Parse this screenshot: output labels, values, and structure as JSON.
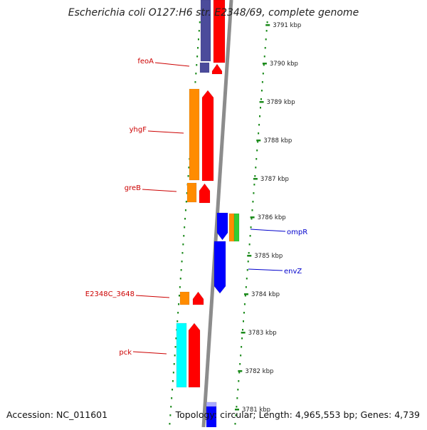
{
  "title": "Escherichia coli O127:H6 str. E2348/69, complete genome",
  "footer": {
    "accession_label": "Accession:",
    "accession": "NC_011601",
    "topology_text": "Topology: circular; Length: 4,965,553 bp; Genes: 4,739"
  },
  "ticks": [
    {
      "label": "3791 kbp",
      "kbp": 3791
    },
    {
      "label": "3790 kbp",
      "kbp": 3790
    },
    {
      "label": "3789 kbp",
      "kbp": 3789
    },
    {
      "label": "3788 kbp",
      "kbp": 3788
    },
    {
      "label": "3787 kbp",
      "kbp": 3787
    },
    {
      "label": "3786 kbp",
      "kbp": 3786
    },
    {
      "label": "3785 kbp",
      "kbp": 3785
    },
    {
      "label": "3784 kbp",
      "kbp": 3784
    },
    {
      "label": "3783 kbp",
      "kbp": 3783
    },
    {
      "label": "3782 kbp",
      "kbp": 3782
    },
    {
      "label": "3781 kbp",
      "kbp": 3781
    }
  ],
  "gene_labels": [
    {
      "name": "feoA",
      "strand": "reverse",
      "color": "#cc0000"
    },
    {
      "name": "yhgF",
      "strand": "reverse",
      "color": "#cc0000"
    },
    {
      "name": "greB",
      "strand": "reverse",
      "color": "#cc0000"
    },
    {
      "name": "ompR",
      "strand": "forward",
      "color": "#0000cc"
    },
    {
      "name": "envZ",
      "strand": "forward",
      "color": "#0000cc"
    },
    {
      "name": "E2348C_3648",
      "strand": "reverse",
      "color": "#cc0000"
    },
    {
      "name": "pck",
      "strand": "reverse",
      "color": "#cc0000"
    }
  ],
  "colors": {
    "backbone": "#8c8c8c",
    "tick_green": "#1a8a1a",
    "cds_red": "#ff0000",
    "cds_blue": "#0000ff",
    "orange": "#ff8c00",
    "cyan": "#00ffff",
    "purple": "#4b4b9b",
    "green": "#33cc33"
  }
}
